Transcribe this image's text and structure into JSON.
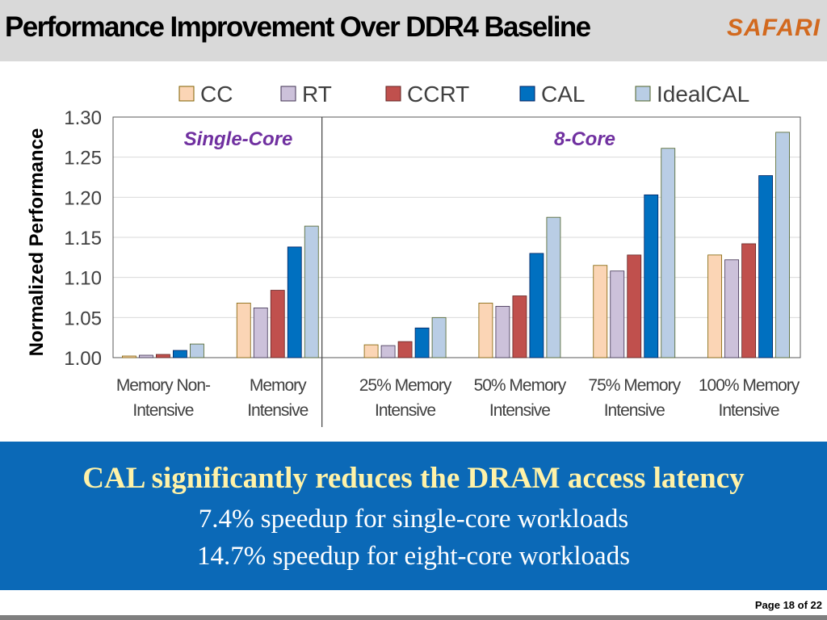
{
  "header": {
    "title": "Performance Improvement Over DDR4 Baseline",
    "logo": "SAFARI"
  },
  "chart_data": {
    "type": "bar",
    "ylabel": "Normalized Performance",
    "ylim": [
      1.0,
      1.3
    ],
    "yticks": [
      "1.00",
      "1.05",
      "1.10",
      "1.15",
      "1.20",
      "1.25",
      "1.30"
    ],
    "grid": true,
    "legend_position": "top",
    "panels": [
      {
        "label": "Single-Core",
        "color": "#7030a0",
        "categories": 2
      },
      {
        "label": "8-Core",
        "color": "#7030a0",
        "categories": 4
      }
    ],
    "categories": [
      [
        "Memory Non-",
        "Intensive"
      ],
      [
        "Memory",
        "Intensive"
      ],
      [
        "25% Memory",
        "Intensive"
      ],
      [
        "50% Memory",
        "Intensive"
      ],
      [
        "75% Memory",
        "Intensive"
      ],
      [
        "100% Memory",
        "Intensive"
      ]
    ],
    "series": [
      {
        "name": "CC",
        "color": "#fbd5b5",
        "stroke": "#7f6000",
        "values": [
          1.002,
          1.068,
          1.016,
          1.068,
          1.115,
          1.128
        ]
      },
      {
        "name": "RT",
        "color": "#ccc1da",
        "stroke": "#3f3151",
        "values": [
          1.003,
          1.062,
          1.015,
          1.064,
          1.108,
          1.122
        ]
      },
      {
        "name": "CCRT",
        "color": "#c0504d",
        "stroke": "#632423",
        "values": [
          1.004,
          1.084,
          1.02,
          1.077,
          1.128,
          1.142
        ]
      },
      {
        "name": "CAL",
        "color": "#0070c0",
        "stroke": "#002060",
        "values": [
          1.009,
          1.138,
          1.037,
          1.13,
          1.203,
          1.227
        ]
      },
      {
        "name": "IdealCAL",
        "color": "#b9cde5",
        "stroke": "#4f6228",
        "values": [
          1.017,
          1.164,
          1.05,
          1.175,
          1.261,
          1.281
        ]
      }
    ]
  },
  "banner": {
    "line1": "CAL significantly reduces the DRAM access latency",
    "line2": "7.4% speedup for single-core workloads",
    "line3": "14.7% speedup for eight-core workloads"
  },
  "footer": {
    "page": "Page 18 of 22"
  }
}
